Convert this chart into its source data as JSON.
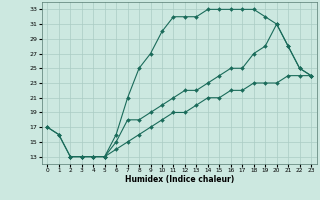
{
  "xlabel": "Humidex (Indice chaleur)",
  "bg_color": "#cce8e0",
  "grid_color": "#aaccC4",
  "line_color": "#1a6b5a",
  "xlim": [
    -0.5,
    23.5
  ],
  "ylim": [
    12,
    34
  ],
  "xticks": [
    0,
    1,
    2,
    3,
    4,
    5,
    6,
    7,
    8,
    9,
    10,
    11,
    12,
    13,
    14,
    15,
    16,
    17,
    18,
    19,
    20,
    21,
    22,
    23
  ],
  "yticks": [
    13,
    15,
    17,
    19,
    21,
    23,
    25,
    27,
    29,
    31,
    33
  ],
  "line1_x": [
    0,
    1,
    2,
    3,
    4,
    5,
    6,
    7,
    8,
    9,
    10,
    11,
    12,
    13,
    14,
    15,
    16,
    17,
    18,
    19,
    20,
    21,
    22,
    23
  ],
  "line1_y": [
    17,
    16,
    13,
    13,
    13,
    13,
    14,
    15,
    16,
    17,
    18,
    19,
    19,
    20,
    21,
    21,
    22,
    22,
    23,
    23,
    23,
    24,
    24,
    24
  ],
  "line2_x": [
    0,
    1,
    2,
    3,
    4,
    5,
    6,
    7,
    8,
    9,
    10,
    11,
    12,
    13,
    14,
    15,
    16,
    17,
    18,
    19,
    20,
    21,
    22,
    23
  ],
  "line2_y": [
    17,
    16,
    13,
    13,
    13,
    13,
    16,
    21,
    25,
    27,
    30,
    32,
    32,
    32,
    33,
    33,
    33,
    33,
    33,
    32,
    31,
    28,
    25,
    24
  ],
  "line3_x": [
    2,
    3,
    4,
    5,
    6,
    7,
    8,
    9,
    10,
    11,
    12,
    13,
    14,
    15,
    16,
    17,
    18,
    19,
    20,
    21,
    22,
    23
  ],
  "line3_y": [
    13,
    13,
    13,
    13,
    15,
    18,
    18,
    19,
    20,
    21,
    22,
    22,
    23,
    24,
    25,
    25,
    27,
    28,
    31,
    28,
    25,
    24
  ]
}
